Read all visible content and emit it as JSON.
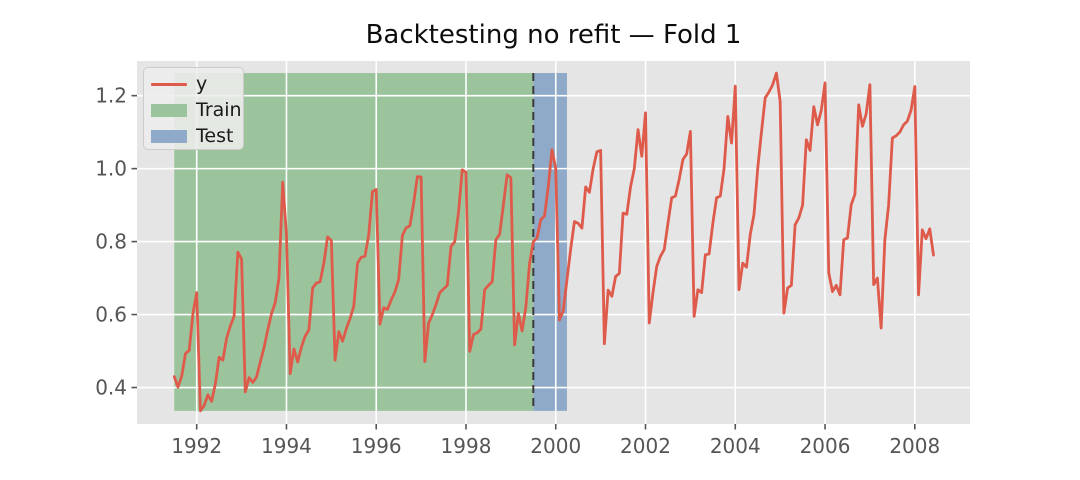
{
  "figure": {
    "title": "Backtesting no refit — Fold 1"
  },
  "chart_data": {
    "type": "line",
    "title": "Backtesting no refit — Fold 1",
    "xlabel": "",
    "ylabel": "",
    "grid": true,
    "legend_position": "upper left",
    "xlim": [
      1990.67,
      2009.23
    ],
    "ylim": [
      0.3,
      1.295
    ],
    "x_ticks": [
      1992,
      1994,
      1996,
      1998,
      2000,
      2002,
      2004,
      2006,
      2008
    ],
    "y_ticks": [
      0.4,
      0.6,
      0.8,
      1.0,
      1.2
    ],
    "colors": {
      "figure_background": "#ffffff",
      "axes_background": "#e5e5e5",
      "grid": "#ffffff",
      "series_line": "#de5b4b",
      "train_band": "#9cc49c",
      "test_band": "#8fa9c9",
      "split_line": "#3b3b3b",
      "tick_label": "#555555",
      "title_text": "#0d0d0d"
    },
    "legend": [
      {
        "label": "y",
        "marker": "line",
        "color": "#de5b4b"
      },
      {
        "label": "Train",
        "marker": "patch",
        "color": "#9cc49c"
      },
      {
        "label": "Test",
        "marker": "patch",
        "color": "#8fa9c9"
      }
    ],
    "train_span": {
      "label": "Train",
      "start": 1991.5,
      "end": 1999.5
    },
    "test_span": {
      "label": "Test",
      "start": 1999.5,
      "end": 2000.25
    },
    "split_line_x": 1999.5,
    "band_value_extent": "min_to_max_of_series",
    "series": {
      "name": "y",
      "freq": "monthly",
      "start_year": 1991,
      "start_month": 7,
      "values": [
        0.43,
        0.401,
        0.432,
        0.493,
        0.502,
        0.603,
        0.66,
        0.336,
        0.351,
        0.38,
        0.362,
        0.411,
        0.483,
        0.475,
        0.535,
        0.569,
        0.595,
        0.771,
        0.752,
        0.388,
        0.427,
        0.414,
        0.429,
        0.47,
        0.509,
        0.558,
        0.602,
        0.633,
        0.7,
        0.963,
        0.819,
        0.438,
        0.506,
        0.47,
        0.511,
        0.541,
        0.558,
        0.673,
        0.686,
        0.69,
        0.741,
        0.813,
        0.803,
        0.475,
        0.553,
        0.527,
        0.561,
        0.589,
        0.623,
        0.741,
        0.757,
        0.76,
        0.819,
        0.937,
        0.943,
        0.574,
        0.619,
        0.614,
        0.64,
        0.662,
        0.696,
        0.817,
        0.838,
        0.843,
        0.905,
        0.978,
        0.977,
        0.471,
        0.576,
        0.6,
        0.628,
        0.66,
        0.67,
        0.68,
        0.787,
        0.8,
        0.88,
        0.997,
        0.99,
        0.499,
        0.545,
        0.55,
        0.56,
        0.668,
        0.68,
        0.69,
        0.805,
        0.82,
        0.9,
        0.983,
        0.975,
        0.517,
        0.604,
        0.555,
        0.62,
        0.74,
        0.8,
        0.81,
        0.86,
        0.87,
        0.95,
        1.052,
        1.0,
        0.585,
        0.61,
        0.695,
        0.78,
        0.855,
        0.85,
        0.837,
        0.95,
        0.935,
        1.0,
        1.046,
        1.05,
        0.52,
        0.667,
        0.65,
        0.704,
        0.713,
        0.878,
        0.875,
        0.95,
        1.0,
        1.107,
        1.034,
        1.153,
        0.577,
        0.66,
        0.732,
        0.76,
        0.778,
        0.85,
        0.92,
        0.925,
        0.97,
        1.025,
        1.04,
        1.102,
        0.595,
        0.668,
        0.66,
        0.764,
        0.766,
        0.85,
        0.92,
        0.925,
        1.0,
        1.143,
        1.07,
        1.226,
        0.668,
        0.741,
        0.73,
        0.819,
        0.874,
        1.0,
        1.1,
        1.194,
        1.21,
        1.23,
        1.262,
        1.184,
        0.604,
        0.673,
        0.68,
        0.846,
        0.865,
        0.9,
        1.079,
        1.05,
        1.17,
        1.12,
        1.16,
        1.235,
        0.714,
        0.663,
        0.68,
        0.654,
        0.805,
        0.81,
        0.901,
        0.93,
        1.175,
        1.116,
        1.15,
        1.23,
        0.682,
        0.7,
        0.563,
        0.805,
        0.9,
        1.084,
        1.09,
        1.1,
        1.12,
        1.13,
        1.16,
        1.225,
        0.654,
        0.832,
        0.808,
        0.835,
        0.763
      ]
    }
  }
}
